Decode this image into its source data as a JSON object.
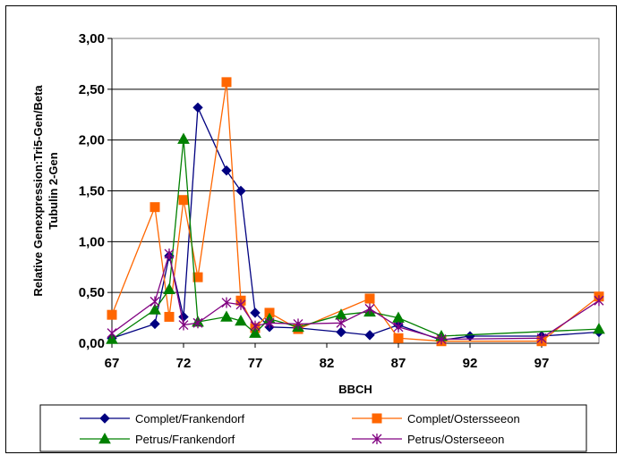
{
  "chart_data": {
    "type": "line",
    "title": "",
    "xlabel": "BBCH",
    "ylabel_lines": [
      "Relative Genexpression:Tri5-Gen/Beta",
      "Tubulin 2-Gen"
    ],
    "xlim": [
      67,
      101
    ],
    "ylim": [
      0,
      3
    ],
    "x_ticks": [
      67,
      72,
      77,
      82,
      87,
      92,
      97
    ],
    "x_tick_labels": [
      "67",
      "72",
      "77",
      "82",
      "87",
      "92",
      "97"
    ],
    "y_ticks": [
      0,
      0.5,
      1,
      1.5,
      2,
      2.5,
      3
    ],
    "y_tick_labels": [
      "0,00",
      "0,50",
      "1,00",
      "1,50",
      "2,00",
      "2,50",
      "3,00"
    ],
    "grid": "horizontal",
    "legend_position": "bottom",
    "series": [
      {
        "name": "Complet/Frankendorf",
        "color": "#000080",
        "marker": "diamond",
        "points": [
          [
            67,
            0.05
          ],
          [
            70,
            0.19
          ],
          [
            71,
            0.86
          ],
          [
            72,
            0.26
          ],
          [
            73,
            2.32
          ],
          [
            75,
            1.7
          ],
          [
            76,
            1.5
          ],
          [
            77,
            0.3
          ],
          [
            78,
            0.16
          ],
          [
            80,
            0.15
          ],
          [
            83,
            0.11
          ],
          [
            85,
            0.08
          ],
          [
            87,
            0.18
          ],
          [
            90,
            0.03
          ],
          [
            92,
            0.07
          ],
          [
            97,
            0.07
          ],
          [
            101,
            0.11
          ]
        ]
      },
      {
        "name": "Complet/Ostersseeon",
        "color": "#FF6600",
        "marker": "square",
        "points": [
          [
            67,
            0.28
          ],
          [
            70,
            1.34
          ],
          [
            71,
            0.26
          ],
          [
            72,
            1.41
          ],
          [
            73,
            0.65
          ],
          [
            75,
            2.57
          ],
          [
            76,
            0.42
          ],
          [
            77,
            0.15
          ],
          [
            78,
            0.3
          ],
          [
            80,
            0.14
          ],
          [
            85,
            0.44
          ],
          [
            87,
            0.05
          ],
          [
            90,
            0.02
          ],
          [
            97,
            0.02
          ],
          [
            101,
            0.46
          ]
        ]
      },
      {
        "name": "Petrus/Frankendorf",
        "color": "#008000",
        "marker": "triangle",
        "points": [
          [
            67,
            0.04
          ],
          [
            70,
            0.33
          ],
          [
            71,
            0.53
          ],
          [
            72,
            2.01
          ],
          [
            73,
            0.21
          ],
          [
            75,
            0.26
          ],
          [
            76,
            0.22
          ],
          [
            77,
            0.1
          ],
          [
            78,
            0.24
          ],
          [
            80,
            0.16
          ],
          [
            83,
            0.28
          ],
          [
            85,
            0.31
          ],
          [
            87,
            0.25
          ],
          [
            90,
            0.07
          ],
          [
            101,
            0.14
          ]
        ]
      },
      {
        "name": "Petrus/Osterseeon",
        "color": "#800080",
        "marker": "star",
        "points": [
          [
            67,
            0.1
          ],
          [
            70,
            0.41
          ],
          [
            71,
            0.88
          ],
          [
            72,
            0.18
          ],
          [
            73,
            0.2
          ],
          [
            75,
            0.4
          ],
          [
            76,
            0.38
          ],
          [
            77,
            0.17
          ],
          [
            78,
            0.2
          ],
          [
            80,
            0.19
          ],
          [
            83,
            0.2
          ],
          [
            85,
            0.34
          ],
          [
            87,
            0.16
          ],
          [
            90,
            0.04
          ],
          [
            97,
            0.05
          ],
          [
            101,
            0.42
          ]
        ]
      }
    ]
  }
}
